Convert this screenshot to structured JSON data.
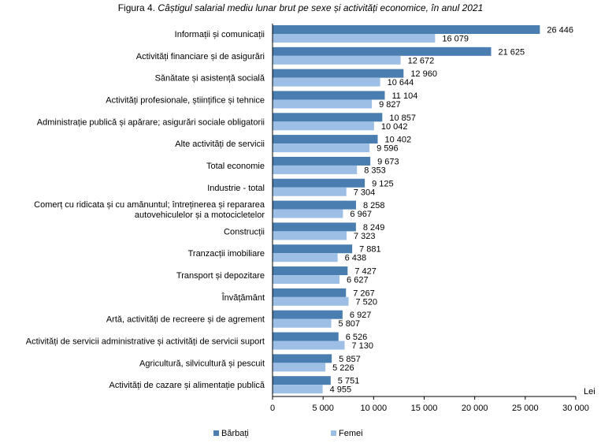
{
  "chart_data": {
    "type": "bar",
    "orientation": "horizontal",
    "title_prefix": "Figura 4.",
    "title": "Câștigul salarial mediu lunar brut pe sexe și activități economice, în anul 2021",
    "unit_label": "Lei",
    "xlim": [
      0,
      30000
    ],
    "x_ticks": [
      0,
      5000,
      10000,
      15000,
      20000,
      25000,
      30000
    ],
    "x_tick_labels": [
      "0",
      "5 000",
      "10 000",
      "15 000",
      "20 000",
      "25 000",
      "30 000"
    ],
    "grid": false,
    "legend_position": "bottom",
    "categories": [
      [
        "Informații și comunicații"
      ],
      [
        "Activități financiare și de asigurări"
      ],
      [
        "Sănătate și asistență socială"
      ],
      [
        "Activități profesionale, științifice și tehnice"
      ],
      [
        "Administrație publică și apărare; asigurări sociale obligatorii"
      ],
      [
        "Alte activități de servicii"
      ],
      [
        "Total economie"
      ],
      [
        "Industrie - total"
      ],
      [
        "Comerț cu ridicata și cu amănuntul; întreținerea și repararea",
        "autovehiculelor și a motocicletelor"
      ],
      [
        "Construcții"
      ],
      [
        "Tranzacții imobiliare"
      ],
      [
        "Transport și depozitare"
      ],
      [
        "Învățământ"
      ],
      [
        "Artă, activități de recreere și de agrement"
      ],
      [
        "Activități de servicii administrative și activități de servicii suport"
      ],
      [
        "Agricultură, silvicultură și pescuit"
      ],
      [
        "Activități de cazare și alimentație publică"
      ]
    ],
    "series": [
      {
        "name": "Bărbați",
        "color": "#4a7eb0",
        "values": [
          26446,
          21625,
          12960,
          11104,
          10857,
          10402,
          9673,
          9125,
          8258,
          8249,
          7881,
          7427,
          7267,
          6927,
          6526,
          5857,
          5751
        ],
        "value_labels": [
          "26 446",
          "21 625",
          "12 960",
          "11 104",
          "10 857",
          "10 402",
          "9 673",
          "9 125",
          "8 258",
          "8 249",
          "7 881",
          "7 427",
          "7 267",
          "6 927",
          "6 526",
          "5 857",
          "5 751"
        ]
      },
      {
        "name": "Femei",
        "color": "#9dbfe6",
        "values": [
          16079,
          12672,
          10644,
          9827,
          10042,
          9596,
          8353,
          7304,
          6967,
          7323,
          6438,
          6627,
          7520,
          5807,
          7130,
          5226,
          4955
        ],
        "value_labels": [
          "16 079",
          "12 672",
          "10 644",
          "9 827",
          "10 042",
          "9 596",
          "8 353",
          "7 304",
          "6 967",
          "7 323",
          "6 438",
          "6 627",
          "7 520",
          "5 807",
          "7 130",
          "5 226",
          "4 955"
        ]
      }
    ]
  }
}
